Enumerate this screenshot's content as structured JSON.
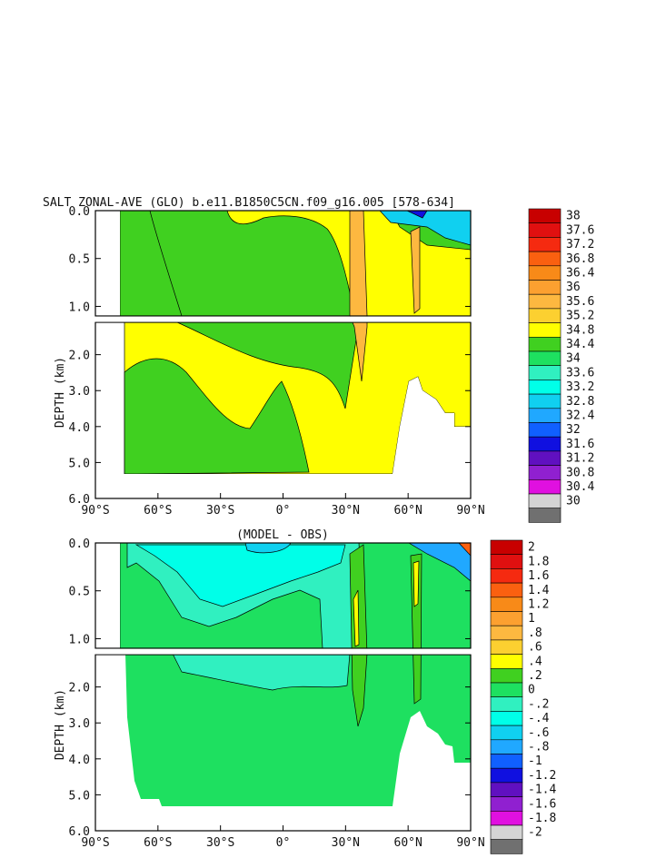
{
  "chart_data": [
    {
      "type": "heatmap",
      "title": "SALT ZONAL-AVE (GLO) b.e11.B1850C5CN.f09_g16.005 [578-634]",
      "ylabel": "DEPTH (km)",
      "xlim": [
        -90,
        90
      ],
      "ylim": [
        0,
        6
      ],
      "x_ticks": [
        "90°S",
        "60°S",
        "30°S",
        "0°",
        "30°N",
        "60°N",
        "90°N"
      ],
      "y_ticks": [
        "0.0",
        "0.5",
        "1.0",
        "2.0",
        "3.0",
        "4.0",
        "5.0",
        "6.0"
      ],
      "colorbar_labels": [
        "38",
        "37.6",
        "37.2",
        "36.8",
        "36.4",
        "36",
        "35.6",
        "35.2",
        "34.8",
        "34.4",
        "34",
        "33.6",
        "33.2",
        "32.8",
        "32.4",
        "32",
        "31.6",
        "31.2",
        "30.8",
        "30.4",
        "30"
      ],
      "colorbar_colors": [
        "#c80000",
        "#e01010",
        "#f52a10",
        "#fa6010",
        "#f88a18",
        "#fca030",
        "#fdb840",
        "#fcd030",
        "#ffff00",
        "#40d020",
        "#1ee060",
        "#30f0c0",
        "#00ffe8",
        "#10d0f0",
        "#20a8ff",
        "#1060ff",
        "#1010e0",
        "#6010c0",
        "#9020d0",
        "#e010e0",
        "#d4d4d4",
        "#707070"
      ],
      "regions": [
        {
          "value_band": "34.4-34.8",
          "color": "#40d020"
        },
        {
          "value_band": "34.8-35.2",
          "color": "#ffff00"
        },
        {
          "value_band": "35.2-35.6",
          "color": "#fcd030"
        },
        {
          "value_band": "35.6-36",
          "color": "#fdb840"
        }
      ]
    },
    {
      "type": "heatmap",
      "title": "(MODEL - OBS)",
      "ylabel": "DEPTH (km)",
      "xlim": [
        -90,
        90
      ],
      "ylim": [
        0,
        6
      ],
      "x_ticks": [
        "90°S",
        "60°S",
        "30°S",
        "0°",
        "30°N",
        "60°N",
        "90°N"
      ],
      "y_ticks": [
        "0.0",
        "0.5",
        "1.0",
        "2.0",
        "3.0",
        "4.0",
        "5.0",
        "6.0"
      ],
      "colorbar_labels": [
        "2",
        "1.8",
        "1.6",
        "1.4",
        "1.2",
        "1",
        ".8",
        ".6",
        ".4",
        ".2",
        "0",
        "-.2",
        "-.4",
        "-.6",
        "-.8",
        "-1",
        "-1.2",
        "-1.4",
        "-1.6",
        "-1.8",
        "-2"
      ],
      "colorbar_colors": [
        "#c80000",
        "#e01010",
        "#f52a10",
        "#fa6010",
        "#f88a18",
        "#fca030",
        "#fdb840",
        "#fcd030",
        "#ffff00",
        "#40d020",
        "#1ee060",
        "#30f0c0",
        "#00ffe8",
        "#10d0f0",
        "#20a8ff",
        "#1060ff",
        "#1010e0",
        "#6010c0",
        "#9020d0",
        "#e010e0",
        "#d4d4d4",
        "#707070"
      ],
      "regions": [
        {
          "value_band": "0-0.2",
          "color": "#1ee060"
        },
        {
          "value_band": "-0.2-0",
          "color": "#30f0c0"
        },
        {
          "value_band": "-0.4--0.2",
          "color": "#00ffe8"
        },
        {
          "value_band": "0.2-0.4",
          "color": "#40d020"
        },
        {
          "value_band": "0.4-0.6",
          "color": "#ffff00"
        }
      ]
    }
  ]
}
